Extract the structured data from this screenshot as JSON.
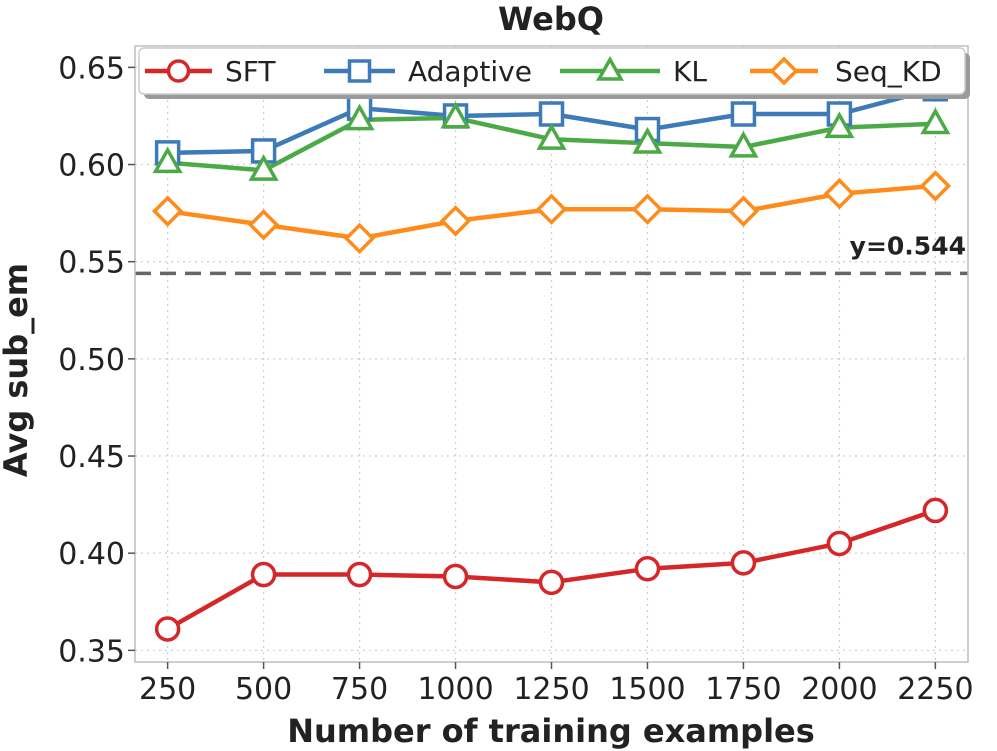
{
  "chart_data": {
    "type": "line",
    "title": "WebQ",
    "xlabel": "Number of training examples",
    "ylabel": "Avg sub_em",
    "x": [
      250,
      500,
      750,
      1000,
      1250,
      1500,
      1750,
      2000,
      2250
    ],
    "x_tick_labels": [
      "250",
      "500",
      "750",
      "1000",
      "1250",
      "1500",
      "1750",
      "2000",
      "2250"
    ],
    "y_ticks": [
      0.35,
      0.4,
      0.45,
      0.5,
      0.55,
      0.6,
      0.65
    ],
    "y_tick_labels": [
      "0.35",
      "0.40",
      "0.45",
      "0.50",
      "0.55",
      "0.60",
      "0.65"
    ],
    "xlim": [
      165,
      2335
    ],
    "ylim": [
      0.344,
      0.661
    ],
    "grid": true,
    "legend_position": "top",
    "series": [
      {
        "name": "SFT",
        "color": "#d62728",
        "marker": "circle",
        "values": [
          0.361,
          0.389,
          0.389,
          0.388,
          0.385,
          0.392,
          0.395,
          0.405,
          0.422
        ]
      },
      {
        "name": "Adaptive",
        "color": "#3d7ab8",
        "marker": "square",
        "values": [
          0.606,
          0.607,
          0.629,
          0.625,
          0.626,
          0.618,
          0.626,
          0.626,
          0.639
        ]
      },
      {
        "name": "KL",
        "color": "#4caa46",
        "marker": "triangle",
        "values": [
          0.601,
          0.597,
          0.623,
          0.624,
          0.613,
          0.611,
          0.609,
          0.619,
          0.621
        ]
      },
      {
        "name": "Seq_KD",
        "color": "#ff8c1a",
        "marker": "diamond",
        "values": [
          0.576,
          0.569,
          0.562,
          0.571,
          0.577,
          0.577,
          0.576,
          0.585,
          0.589
        ]
      }
    ],
    "reference_line": {
      "y": 0.544,
      "label": "y=0.544",
      "color": "#666666",
      "style": "dashed"
    }
  }
}
